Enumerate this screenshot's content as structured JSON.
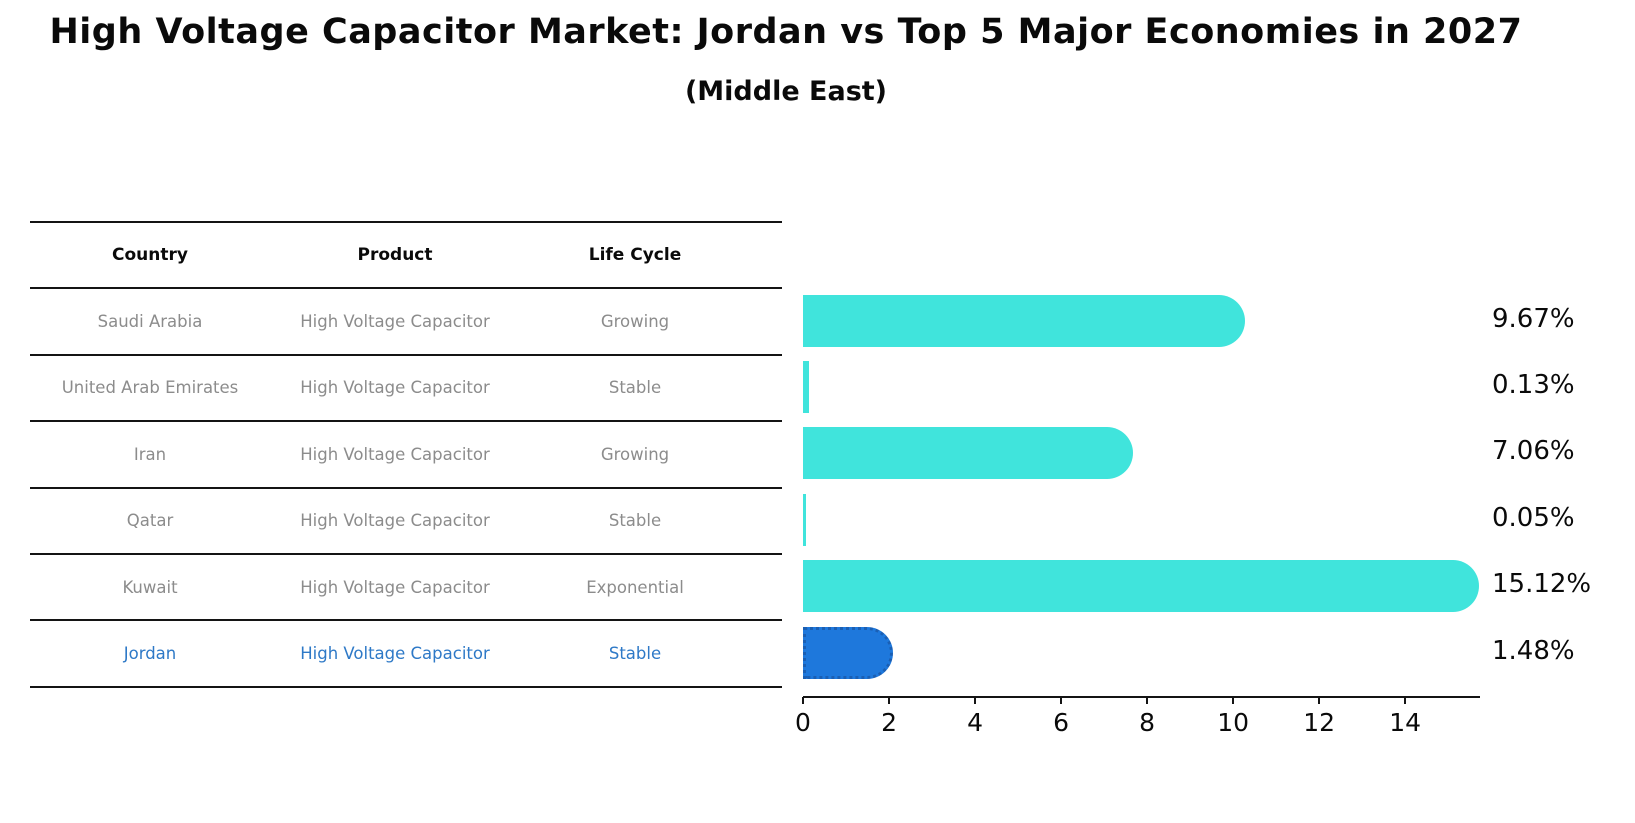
{
  "chart_data": {
    "type": "bar",
    "orientation": "horizontal",
    "title": "High Voltage Capacitor Market: Jordan vs Top 5 Major Economies in 2027",
    "subtitle": "(Middle East)",
    "categories": [
      "Saudi Arabia",
      "United Arab Emirates",
      "Iran",
      "Qatar",
      "Kuwait",
      "Jordan"
    ],
    "values": [
      9.67,
      0.13,
      7.06,
      0.05,
      15.12,
      1.48
    ],
    "value_labels": [
      "9.67%",
      "0.13%",
      "7.06%",
      "0.05%",
      "15.12%",
      "1.48%"
    ],
    "xlim": [
      0,
      15.74
    ],
    "xticks": [
      0,
      2,
      4,
      6,
      8,
      10,
      12,
      14
    ],
    "grid": false,
    "legend": false,
    "bar_color": "#40e4dc",
    "highlight_bar_color": "#1e78dc",
    "highlight_bar_border": "#1a5fb4",
    "highlight_index": 5,
    "value_label_color": "#0a0a0a"
  },
  "table": {
    "headers": [
      "Country",
      "Product",
      "Life Cycle"
    ],
    "rows": [
      {
        "country": "Saudi Arabia",
        "product": "High Voltage Capacitor",
        "life_cycle": "Growing",
        "highlight": false
      },
      {
        "country": "United Arab Emirates",
        "product": "High Voltage Capacitor",
        "life_cycle": "Stable",
        "highlight": false
      },
      {
        "country": "Iran",
        "product": "High Voltage Capacitor",
        "life_cycle": "Growing",
        "highlight": false
      },
      {
        "country": "Qatar",
        "product": "High Voltage Capacitor",
        "life_cycle": "Stable",
        "highlight": false
      },
      {
        "country": "Kuwait",
        "product": "High Voltage Capacitor",
        "life_cycle": "Exponential",
        "highlight": false
      },
      {
        "country": "Jordan",
        "product": "High Voltage Capacitor",
        "life_cycle": "Stable",
        "highlight": true
      }
    ],
    "highlight_text_color": "#2e79c7",
    "normal_text_color": "#8c8c8c"
  }
}
